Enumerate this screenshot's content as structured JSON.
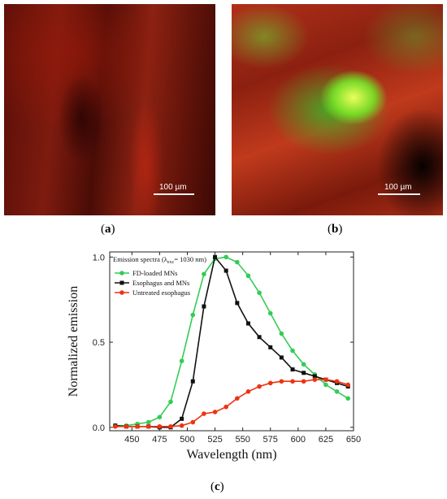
{
  "panels": {
    "a": {
      "label": "a",
      "scale_bar": "100 µm"
    },
    "b": {
      "label": "b",
      "scale_bar": "100 µm"
    },
    "c": {
      "label": "c"
    }
  },
  "chart_data": {
    "type": "line",
    "title": "",
    "xlabel": "Wavelength (nm)",
    "ylabel": "Normalized emission",
    "xlim": [
      430,
      650
    ],
    "ylim": [
      -0.02,
      1.03
    ],
    "xticks": [
      450,
      475,
      500,
      525,
      550,
      575,
      600,
      625,
      650
    ],
    "yticks": [
      0.0,
      0.5,
      1.0
    ],
    "yticklabels": [
      "0.0",
      "0.5",
      "1.0"
    ],
    "legend_placement": "top-left",
    "legend_title_prefix": "Emission spectra (λ",
    "legend_title_sub": "exc",
    "legend_title_suffix": "= 1030 nm)",
    "series": [
      {
        "name": "FD-loaded MNs",
        "color": "#33cc55",
        "marker": "circle",
        "x": [
          435,
          445,
          455,
          465,
          475,
          485,
          495,
          505,
          515,
          525,
          535,
          545,
          555,
          565,
          575,
          585,
          595,
          605,
          615,
          625,
          635,
          645
        ],
        "y": [
          0.01,
          0.01,
          0.02,
          0.03,
          0.06,
          0.15,
          0.39,
          0.66,
          0.9,
          0.99,
          1.0,
          0.97,
          0.89,
          0.79,
          0.67,
          0.55,
          0.45,
          0.37,
          0.31,
          0.25,
          0.21,
          0.17
        ]
      },
      {
        "name": "Esophagus and MNs",
        "color": "#111111",
        "marker": "square",
        "x": [
          435,
          445,
          455,
          465,
          475,
          485,
          495,
          505,
          515,
          525,
          535,
          545,
          555,
          565,
          575,
          585,
          595,
          605,
          615,
          625,
          635,
          645
        ],
        "y": [
          0.01,
          0.005,
          0.005,
          0.005,
          0.0,
          0.0,
          0.05,
          0.27,
          0.71,
          1.0,
          0.92,
          0.73,
          0.61,
          0.53,
          0.47,
          0.41,
          0.34,
          0.32,
          0.3,
          0.28,
          0.26,
          0.24
        ]
      },
      {
        "name": "Untreated esophagus",
        "color": "#ee3311",
        "marker": "circle",
        "x": [
          435,
          445,
          455,
          465,
          475,
          485,
          495,
          505,
          515,
          525,
          535,
          545,
          555,
          565,
          575,
          585,
          595,
          605,
          615,
          625,
          635,
          645
        ],
        "y": [
          0.005,
          0.005,
          0.005,
          0.005,
          0.005,
          0.005,
          0.01,
          0.03,
          0.08,
          0.09,
          0.12,
          0.17,
          0.21,
          0.24,
          0.26,
          0.27,
          0.27,
          0.27,
          0.28,
          0.28,
          0.27,
          0.25
        ]
      }
    ]
  }
}
